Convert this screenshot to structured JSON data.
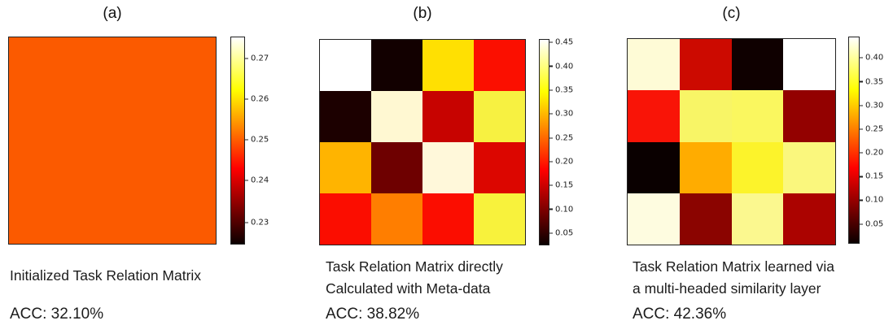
{
  "figure": {
    "panels": [
      {
        "id": "a",
        "title": "(a)",
        "caption_lines": [
          "Initialized Task Relation Matrix"
        ],
        "acc": "ACC: 32.10%",
        "cells": [
          [
            "#FB5A00",
            "#FB5A00",
            "#FB5A00",
            "#FB5A00"
          ],
          [
            "#FB5A00",
            "#FB5A00",
            "#FB5A00",
            "#FB5A00"
          ],
          [
            "#FB5A00",
            "#FB5A00",
            "#FB5A00",
            "#FB5A00"
          ],
          [
            "#FB5A00",
            "#FB5A00",
            "#FB5A00",
            "#FB5A00"
          ]
        ],
        "colorbar_ticks": [
          {
            "label": "0.27",
            "pos": 10.5
          },
          {
            "label": "0.26",
            "pos": 30.1
          },
          {
            "label": "0.25",
            "pos": 49.6
          },
          {
            "label": "0.24",
            "pos": 69.1
          },
          {
            "label": "0.23",
            "pos": 89.5
          }
        ]
      },
      {
        "id": "b",
        "title": "(b)",
        "caption_lines": [
          "Task Relation Matrix directly",
          "Calculated with Meta-data"
        ],
        "acc": "ACC: 38.82%",
        "cells": [
          [
            "#FFFFFF",
            "#120000",
            "#FFE002",
            "#FB0F00"
          ],
          [
            "#1C0000",
            "#FFF8D2",
            "#C70300",
            "#F7F141"
          ],
          [
            "#FFB400",
            "#6E0000",
            "#FFF8DA",
            "#DC0600"
          ],
          [
            "#FB0D00",
            "#FF7E00",
            "#FB0D00",
            "#F8F23C"
          ]
        ],
        "colorbar_ticks": [
          {
            "label": "0.45",
            "pos": 1.6
          },
          {
            "label": "0.40",
            "pos": 13.2
          },
          {
            "label": "0.35",
            "pos": 24.7
          },
          {
            "label": "0.30",
            "pos": 36.3
          },
          {
            "label": "0.25",
            "pos": 47.9
          },
          {
            "label": "0.20",
            "pos": 59.4
          },
          {
            "label": "0.15",
            "pos": 71.0
          },
          {
            "label": "0.10",
            "pos": 82.5
          },
          {
            "label": "0.05",
            "pos": 94.1
          }
        ]
      },
      {
        "id": "c",
        "title": "(c)",
        "caption_lines": [
          "Task Relation Matrix learned via",
          "a multi-headed similarity layer"
        ],
        "acc": "ACC: 42.36%",
        "cells": [
          [
            "#FEFBD6",
            "#CC0A00",
            "#0F0000",
            "#FFFFFF"
          ],
          [
            "#F91407",
            "#F8F566",
            "#FAF75F",
            "#930100"
          ],
          [
            "#0A0000",
            "#FFAC00",
            "#FCF32B",
            "#FAF77D"
          ],
          [
            "#FEFCE0",
            "#8B0400",
            "#FBF88F",
            "#AB0300"
          ]
        ],
        "colorbar_ticks": [
          {
            "label": "0.40",
            "pos": 10.3
          },
          {
            "label": "0.35",
            "pos": 21.8
          },
          {
            "label": "0.30",
            "pos": 33.2
          },
          {
            "label": "0.25",
            "pos": 44.7
          },
          {
            "label": "0.20",
            "pos": 56.1
          },
          {
            "label": "0.15",
            "pos": 67.6
          },
          {
            "label": "0.10",
            "pos": 79.0
          },
          {
            "label": "0.05",
            "pos": 90.5
          }
        ]
      }
    ]
  },
  "chart_data": [
    {
      "type": "heatmap",
      "title": "(a)",
      "caption": "Initialized Task Relation Matrix",
      "accuracy_label": "ACC: 32.10%",
      "accuracy_percent": 32.1,
      "grid": [
        4,
        4
      ],
      "values": [
        [
          0.25,
          0.25,
          0.25,
          0.25
        ],
        [
          0.25,
          0.25,
          0.25,
          0.25
        ],
        [
          0.25,
          0.25,
          0.25,
          0.25
        ],
        [
          0.25,
          0.25,
          0.25,
          0.25
        ]
      ],
      "colormap": "hot",
      "colorbar_ticks": [
        0.27,
        0.26,
        0.25,
        0.24,
        0.23
      ],
      "colorbar_range": [
        0.225,
        0.276
      ],
      "colorbar_position": "right",
      "grid_lines": false
    },
    {
      "type": "heatmap",
      "title": "(b)",
      "caption": "Task Relation Matrix directly Calculated with Meta-data",
      "accuracy_label": "ACC: 38.82%",
      "accuracy_percent": 38.82,
      "grid": [
        4,
        4
      ],
      "values": [
        [
          0.45,
          0.04,
          0.33,
          0.18
        ],
        [
          0.04,
          0.43,
          0.15,
          0.37
        ],
        [
          0.3,
          0.09,
          0.43,
          0.16
        ],
        [
          0.18,
          0.26,
          0.18,
          0.37
        ]
      ],
      "colormap": "hot",
      "colorbar_ticks": [
        0.45,
        0.4,
        0.35,
        0.3,
        0.25,
        0.2,
        0.15,
        0.1,
        0.05
      ],
      "colorbar_range": [
        0.025,
        0.455
      ],
      "colorbar_position": "right",
      "grid_lines": false
    },
    {
      "type": "heatmap",
      "title": "(c)",
      "caption": "Task Relation Matrix learned via a multi-headed similarity layer",
      "accuracy_label": "ACC: 42.36%",
      "accuracy_percent": 42.36,
      "grid": [
        4,
        4
      ],
      "values": [
        [
          0.43,
          0.14,
          0.02,
          0.44
        ],
        [
          0.17,
          0.38,
          0.37,
          0.1
        ],
        [
          0.02,
          0.28,
          0.35,
          0.39
        ],
        [
          0.43,
          0.1,
          0.4,
          0.12
        ]
      ],
      "colormap": "hot",
      "colorbar_ticks": [
        0.4,
        0.35,
        0.3,
        0.25,
        0.2,
        0.15,
        0.1,
        0.05
      ],
      "colorbar_range": [
        0.01,
        0.445
      ],
      "colorbar_position": "right",
      "grid_lines": false
    }
  ]
}
